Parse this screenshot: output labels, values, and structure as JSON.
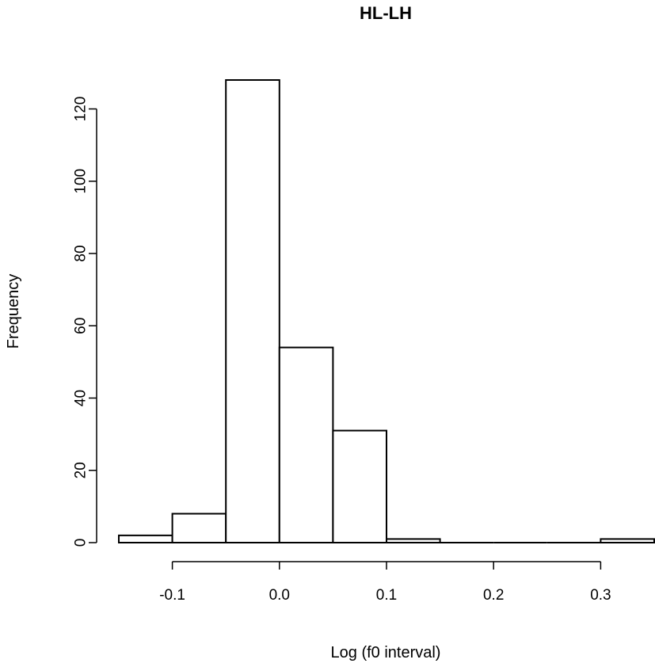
{
  "chart_data": {
    "type": "bar",
    "title": "HL-LH",
    "xlabel": "Log (f0 interval)",
    "ylabel": "Frequency",
    "bins": [
      {
        "start": -0.15,
        "end": -0.1,
        "count": 2
      },
      {
        "start": -0.1,
        "end": -0.05,
        "count": 8
      },
      {
        "start": -0.05,
        "end": 0.0,
        "count": 128
      },
      {
        "start": 0.0,
        "end": 0.05,
        "count": 54
      },
      {
        "start": 0.05,
        "end": 0.1,
        "count": 31
      },
      {
        "start": 0.1,
        "end": 0.15,
        "count": 1
      },
      {
        "start": 0.15,
        "end": 0.2,
        "count": 0
      },
      {
        "start": 0.2,
        "end": 0.25,
        "count": 0
      },
      {
        "start": 0.25,
        "end": 0.3,
        "count": 0
      },
      {
        "start": 0.3,
        "end": 0.35,
        "count": 1
      }
    ],
    "xlim": [
      -0.15,
      0.35
    ],
    "ylim": [
      0,
      128
    ],
    "x_ticks": [
      -0.1,
      0.0,
      0.1,
      0.2,
      0.3
    ],
    "x_tick_labels": [
      "-0.1",
      "0.0",
      "0.1",
      "0.2",
      "0.3"
    ],
    "y_ticks": [
      0,
      20,
      40,
      60,
      80,
      100,
      120
    ],
    "y_tick_labels": [
      "0",
      "20",
      "40",
      "60",
      "80",
      "100",
      "120"
    ],
    "grid": false,
    "bar_fill": "#ffffff",
    "bar_stroke": "#000000"
  }
}
